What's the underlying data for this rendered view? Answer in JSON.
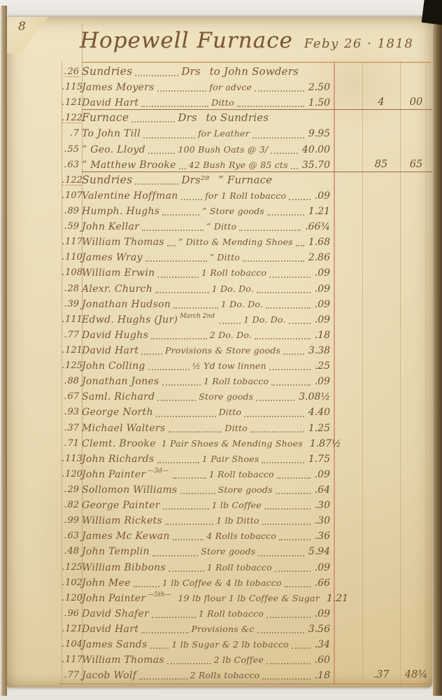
{
  "page": {
    "number": "8",
    "title": "Hopewell Furnace",
    "date": "Feby 26 · 1818"
  },
  "ledger": {
    "entries": [
      {
        "num": "26",
        "heading": true,
        "name": "Sundries",
        "mid": "Drs",
        "tail": "to John Sowders"
      },
      {
        "num": "115",
        "name": "James Moyers",
        "desc": "for advce",
        "amount": "2.50"
      },
      {
        "num": "121",
        "name": "David Hart",
        "desc": "Ditto",
        "amount": "1.50",
        "total_dollars": "4",
        "total_cents": "00",
        "underline": true
      },
      {
        "num": "122",
        "heading": true,
        "name": "Furnace",
        "mid": "Drs",
        "tail": "to Sundries"
      },
      {
        "num": "7",
        "name": "To John Till",
        "desc": "for Leather",
        "amount": "9.95"
      },
      {
        "num": "55",
        "name": "” Geo. Lloyd",
        "desc": "100 Bush Oats @ 3/",
        "amount": "40.00"
      },
      {
        "num": "63",
        "name": "” Matthew Brooke",
        "desc": "42 Bush Rye @ 85 cts",
        "amount": "35.70",
        "total_dollars": "85",
        "total_cents": "65",
        "underline": true
      },
      {
        "num": "122",
        "heading": true,
        "name": "Sundries",
        "mid": "Drs²⁸",
        "tail": "” Furnace"
      },
      {
        "num": "107",
        "name": "Valentine Hoffman",
        "desc": "for 1 Roll tobacco",
        "amount": ".09"
      },
      {
        "num": "89",
        "name": "Humph. Hughs",
        "desc": "” Store goods",
        "amount": "1.21"
      },
      {
        "num": "59",
        "name": "John Kellar",
        "desc": "” Ditto",
        "amount": ".66¾"
      },
      {
        "num": "117",
        "name": "William Thomas",
        "desc": "” Ditto & Mending Shoes",
        "amount": "1.68"
      },
      {
        "num": "110",
        "name": "James Wray",
        "desc": "” Ditto",
        "amount": "2.86"
      },
      {
        "num": "108",
        "name": "William Erwin",
        "desc": "1 Roll tobacco",
        "amount": ".09"
      },
      {
        "num": "28",
        "name": "Alexr. Church",
        "desc": "1 Do. Do.",
        "amount": ".09"
      },
      {
        "num": "39",
        "name": "Jonathan Hudson",
        "desc": "1 Do. Do.",
        "amount": ".09"
      },
      {
        "num": "111",
        "name": "Edwd. Hughs (Jur)",
        "note": "March 2nd",
        "desc": "1 Do. Do.",
        "amount": ".09"
      },
      {
        "num": "77",
        "name": "David Hughs",
        "desc": "2 Do. Do.",
        "amount": ".18"
      },
      {
        "num": "121",
        "name": "David Hart",
        "desc": "Provisions & Store goods",
        "amount": "3.38"
      },
      {
        "num": "125",
        "name": "John Colling",
        "desc": "½ Yd tow linnen",
        "amount": ".25"
      },
      {
        "num": "88",
        "name": "Jonathan Jones",
        "desc": "1 Roll tobacco",
        "amount": ".09"
      },
      {
        "num": "67",
        "name": "Saml. Richard",
        "desc": "Store goods",
        "amount": "3.08½"
      },
      {
        "num": "93",
        "name": "George North",
        "desc": "Ditto",
        "amount": "4.40"
      },
      {
        "num": "37",
        "name": "Michael Walters",
        "desc": "Ditto",
        "amount": "1.25"
      },
      {
        "num": "71",
        "name": "Clemt. Brooke",
        "desc": "1 Pair Shoes & Mending Shoes",
        "amount": "1.87½"
      },
      {
        "num": "113",
        "name": "John Richards",
        "desc": "1 Pair Shoes",
        "amount": "1.75"
      },
      {
        "num": "120",
        "name": "John Painter",
        "note": "—3d—",
        "desc": "1 Roll tobacco",
        "amount": ".09"
      },
      {
        "num": "29",
        "name": "Sollomon Williams",
        "desc": "Store goods",
        "amount": ".64"
      },
      {
        "num": "82",
        "name": "George Painter",
        "desc": "1 lb Coffee",
        "amount": ".30"
      },
      {
        "num": "99",
        "name": "William Rickets",
        "desc": "1 lb Ditto",
        "amount": ".30"
      },
      {
        "num": "63",
        "name": "James Mc Kewan",
        "desc": "4 Rolls tobacco",
        "amount": ".36"
      },
      {
        "num": "48",
        "name": "John Templin",
        "desc": "Store goods",
        "amount": "5.94"
      },
      {
        "num": "125",
        "name": "William Bibbons",
        "desc": "1 Roll tobacco",
        "amount": ".09"
      },
      {
        "num": "102",
        "name": "John Mee",
        "desc": "1 lb Coffee & 4 lb tobacco",
        "amount": ".66"
      },
      {
        "num": "120",
        "name": "John Painter",
        "note": "—5th—",
        "desc": "19 lb flour 1 lb Coffee & Sugar",
        "amount": "1.21"
      },
      {
        "num": "96",
        "name": "David Shafer",
        "desc": "1 Roll tobacco",
        "amount": ".09"
      },
      {
        "num": "121",
        "name": "David Hart",
        "desc": "Provisions &c",
        "amount": "3.56"
      },
      {
        "num": "104",
        "name": "James Sands",
        "desc": "1 lb Sugar & 2 lb tobacco",
        "amount": ".34"
      },
      {
        "num": "117",
        "name": "William Thomas",
        "desc": "2 lb Coffee",
        "amount": ".60"
      },
      {
        "num": "77",
        "name": "Jacob Wolf",
        "desc": "2 Rolls tobacco",
        "amount": ".18",
        "total_dollars": ".37",
        "total_cents": "48¾"
      }
    ]
  }
}
